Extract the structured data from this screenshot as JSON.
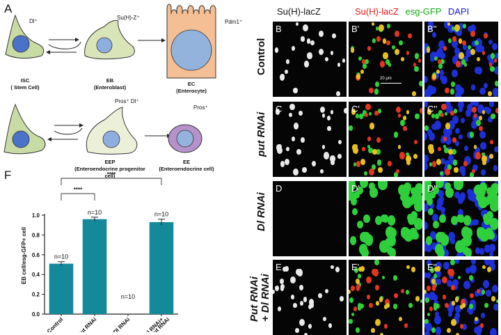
{
  "panel_a": {
    "letter": "A",
    "isc_marker": "Dl⁺",
    "eb_marker": "Su(H)-Z⁺",
    "ec_marker": "Pdm1⁺",
    "eep_marker": "Pros⁺ Dl⁺",
    "ee_marker": "Pros⁺",
    "isc_label": [
      "ISC",
      "( Stem Cell)"
    ],
    "eb_label": [
      "EB",
      "(Enteroblast)"
    ],
    "ec_label": [
      "EC",
      "(Enterocyte)"
    ],
    "eep_label": [
      "EEP",
      "(Enteroendocrine progenitor",
      "cell)"
    ],
    "ee_label": [
      "EE",
      "(Enteroendocrine cell)"
    ]
  },
  "images": {
    "column_headers": {
      "c1": "Su(H)-lacZ",
      "c2_red": "Su(H)-lacZ",
      "c2_green": "esg-GFP",
      "c2_blue": "DAPI"
    },
    "rows": [
      {
        "label": "Control",
        "panels": [
          "B",
          "B'",
          "B''"
        ],
        "scale_bar": "20 μm"
      },
      {
        "label": "put RNAi",
        "panels": [
          "C",
          "C'",
          "C''"
        ]
      },
      {
        "label": "Dl RNAi",
        "panels": [
          "D",
          "D'",
          "D''"
        ]
      },
      {
        "label_line1": "Put RNAi",
        "label_line2": "+ Dl RNAi",
        "panels": [
          "E",
          "E'",
          "E''"
        ]
      }
    ]
  },
  "panel_f": {
    "letter": "F",
    "significance": [
      "****",
      "****"
    ]
  },
  "chart_data": {
    "type": "bar",
    "categories": [
      "Control",
      "Put RNAi",
      "Dl RNAi",
      "Dl RNAi+ Put RNAi"
    ],
    "values": [
      0.51,
      0.96,
      0,
      0.93
    ],
    "errors": [
      0.02,
      0.02,
      0,
      0.03
    ],
    "n_labels": [
      "n=10",
      "n=10",
      "n=10",
      "n=10"
    ],
    "ylabel": "EB cell/esg-GFP+ cell",
    "xlabel": "",
    "ylim": [
      0,
      1.0
    ],
    "yticks": [
      "0.0",
      "0.2",
      "0.4",
      "0.6",
      "0.8",
      "1.0"
    ],
    "bar_color": "#14899a",
    "grid": false
  }
}
